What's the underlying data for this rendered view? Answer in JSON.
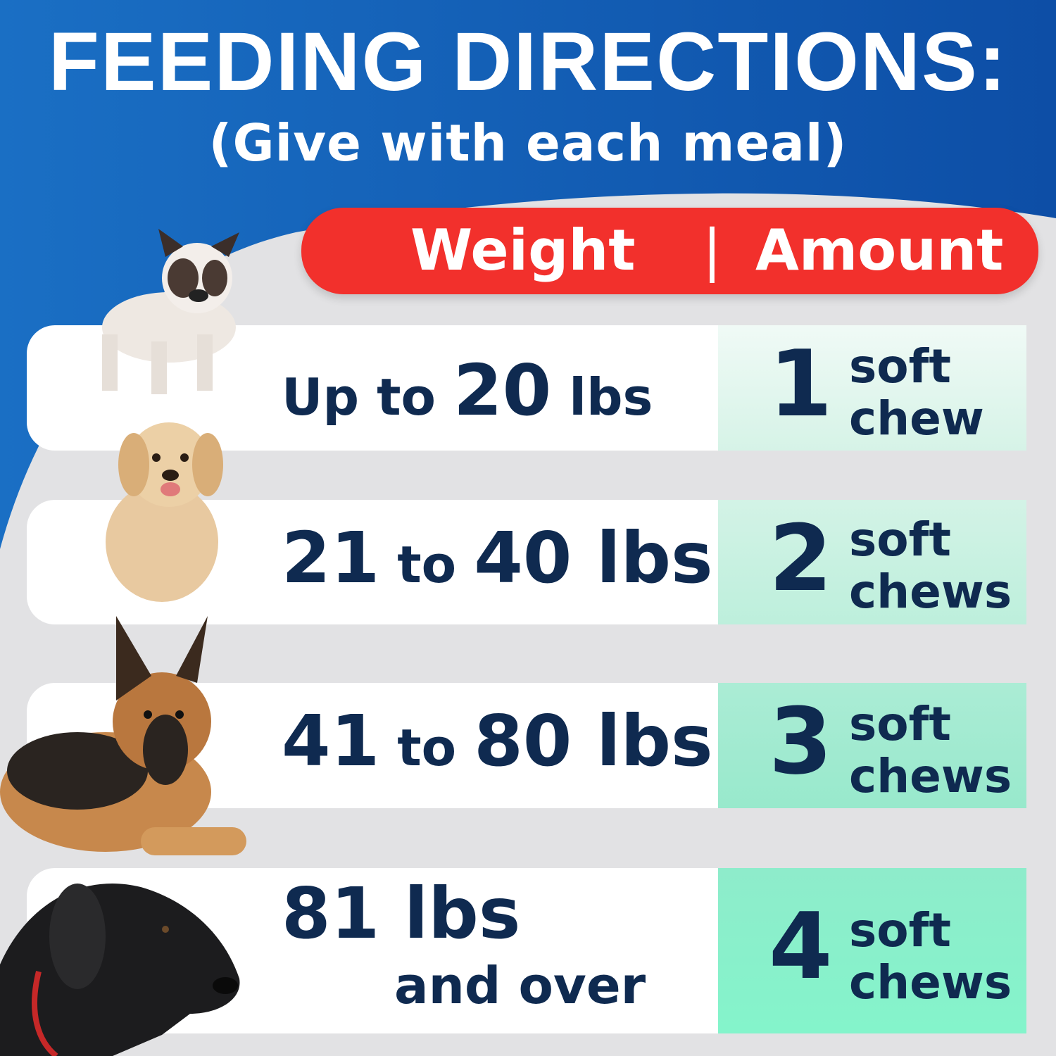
{
  "title": "FEEDING DIRECTIONS:",
  "subtitle": "(Give with each meal)",
  "header": {
    "weight": "Weight",
    "divider": "|",
    "amount": "Amount"
  },
  "colors": {
    "blue": "#1565c0",
    "red": "#f2302c",
    "navy": "#0f2a50"
  },
  "rows": [
    {
      "w1": "Up to ",
      "w2": "20",
      "w3": " lbs",
      "amount": "1",
      "unit1": "soft",
      "unit2": "chew",
      "dog": "french-bulldog"
    },
    {
      "w1": "21",
      "w2": " to ",
      "w3": "40 lbs",
      "amount": "2",
      "unit1": "soft",
      "unit2": "chews",
      "dog": "golden-retriever-puppy"
    },
    {
      "w1": "41",
      "w2": " to ",
      "w3": "80 lbs",
      "amount": "3",
      "unit1": "soft",
      "unit2": "chews",
      "dog": "german-shepherd"
    },
    {
      "w1": "81",
      "w2": " lbs",
      "w3": "and over",
      "amount": "4",
      "unit1": "soft",
      "unit2": "chews",
      "dog": "great-dane"
    }
  ]
}
